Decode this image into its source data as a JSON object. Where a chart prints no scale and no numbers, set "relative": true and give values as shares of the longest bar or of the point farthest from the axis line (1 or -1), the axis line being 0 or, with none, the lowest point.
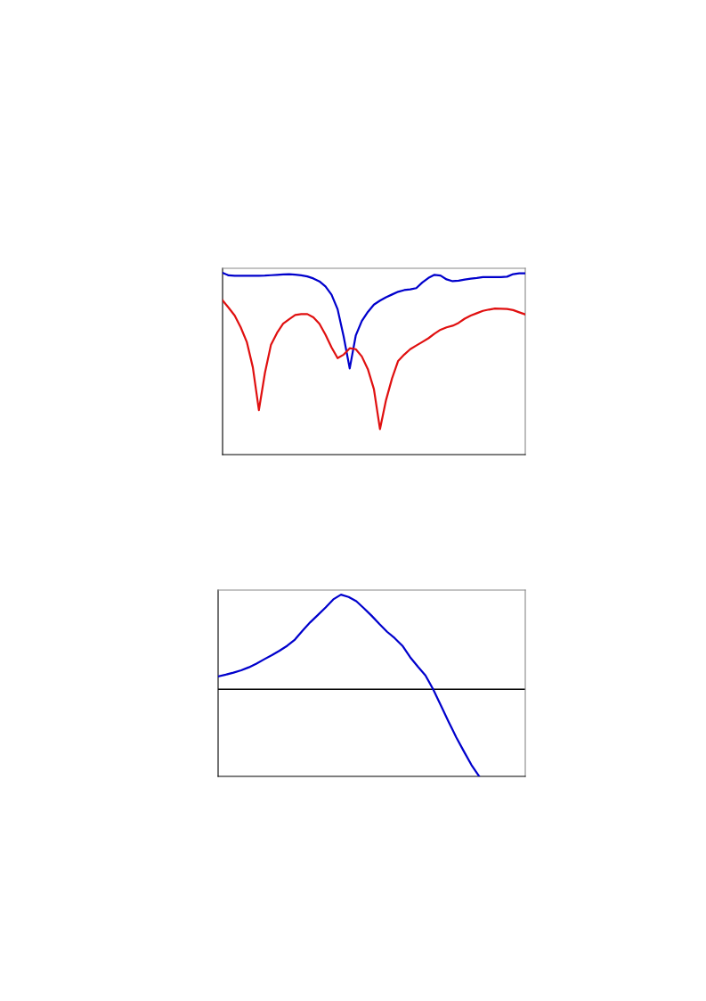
{
  "chart_data": [
    {
      "type": "line",
      "relative": true,
      "categories": [
        null,
        null,
        null,
        null,
        null,
        null,
        null,
        null,
        null,
        null,
        null,
        null,
        null,
        null,
        null,
        null,
        null,
        null,
        null,
        null,
        null,
        null,
        null,
        null,
        null,
        null,
        null,
        null,
        null,
        null,
        null,
        null,
        null,
        null,
        null,
        null,
        null,
        null,
        null,
        null,
        null,
        null,
        null,
        null,
        null,
        null,
        null,
        null,
        null,
        null,
        null
      ],
      "grid": false,
      "marker": "none",
      "line_style": "solid",
      "series": [
        {
          "color": "#0000cc",
          "values": [
            1.0,
            0.986,
            0.984,
            0.984,
            0.984,
            0.984,
            0.984,
            0.985,
            0.987,
            0.989,
            0.991,
            0.993,
            0.99,
            0.986,
            0.98,
            0.969,
            0.953,
            0.925,
            0.88,
            0.8,
            0.65,
            0.474,
            0.655,
            0.735,
            0.785,
            0.825,
            0.847,
            0.866,
            0.881,
            0.896,
            0.905,
            0.909,
            0.916,
            0.947,
            0.972,
            0.989,
            0.985,
            0.964,
            0.954,
            0.957,
            0.963,
            0.968,
            0.972,
            0.977,
            0.977,
            0.977,
            0.977,
            0.979,
            0.993,
            0.997,
            0.997
          ]
        },
        {
          "color": "#e01010",
          "values": [
            0.849,
            0.808,
            0.765,
            0.7,
            0.62,
            0.48,
            0.245,
            0.45,
            0.605,
            0.67,
            0.72,
            0.745,
            0.768,
            0.773,
            0.773,
            0.755,
            0.72,
            0.66,
            0.59,
            0.531,
            0.55,
            0.585,
            0.58,
            0.54,
            0.47,
            0.36,
            0.14,
            0.3,
            0.42,
            0.515,
            0.55,
            0.58,
            0.6,
            0.62,
            0.64,
            0.665,
            0.687,
            0.7,
            0.709,
            0.725,
            0.748,
            0.765,
            0.778,
            0.791,
            0.798,
            0.804,
            0.803,
            0.801,
            0.795,
            0.783,
            0.771
          ]
        }
      ]
    },
    {
      "type": "line",
      "relative": true,
      "categories": [
        null,
        null,
        null,
        null,
        null,
        null,
        null,
        null,
        null,
        null,
        null,
        null,
        null,
        null,
        null,
        null,
        null,
        null,
        null,
        null,
        null,
        null,
        null,
        null,
        null,
        null,
        null,
        null,
        null,
        null,
        null,
        null,
        null,
        null,
        null,
        null,
        null,
        null,
        null,
        null,
        null
      ],
      "grid": false,
      "marker": "none",
      "line_style": "solid",
      "series": [
        {
          "color": "#0000cc",
          "values": [
            0.136,
            0.155,
            0.176,
            0.2,
            0.232,
            0.272,
            0.317,
            0.36,
            0.408,
            0.46,
            0.525,
            0.62,
            0.708,
            0.785,
            0.865,
            0.95,
            1.0,
            0.975,
            0.93,
            0.855,
            0.776,
            0.69,
            0.608,
            0.54,
            0.46,
            0.34,
            0.24,
            0.147,
            0.0,
            -0.17,
            -0.34,
            -0.505,
            -0.655,
            -0.8,
            -0.92,
            null,
            null,
            null,
            null,
            null,
            null
          ]
        }
      ]
    }
  ]
}
